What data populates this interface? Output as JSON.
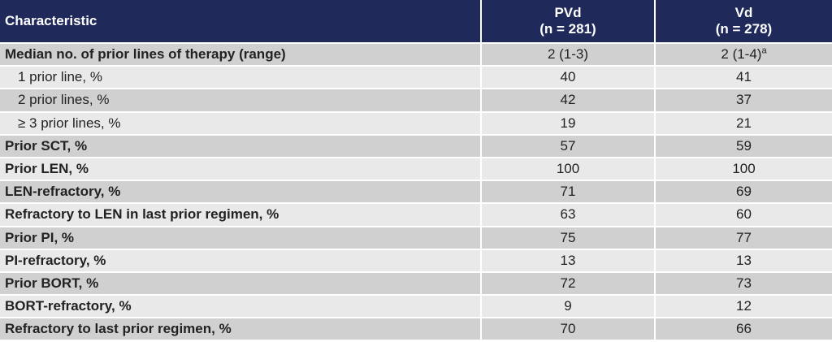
{
  "header": {
    "characteristic": "Characteristic",
    "col1_name": "PVd",
    "col1_n": "(n = 281)",
    "col2_name": "Vd",
    "col2_n": "(n = 278)"
  },
  "rows": [
    {
      "label": "Median no. of prior lines of therapy (range)",
      "pvd": "2 (1-3)",
      "vd": "2 (1-4)",
      "vd_sup": "a"
    },
    {
      "label": "1 prior line, %",
      "pvd": "40",
      "vd": "41"
    },
    {
      "label": "2 prior lines, %",
      "pvd": "42",
      "vd": "37"
    },
    {
      "label": "≥ 3 prior lines, %",
      "pvd": "19",
      "vd": "21"
    },
    {
      "label": "Prior SCT, %",
      "pvd": "57",
      "vd": "59"
    },
    {
      "label": "Prior LEN, %",
      "pvd": "100",
      "vd": "100"
    },
    {
      "label": "LEN-refractory, %",
      "pvd": "71",
      "vd": "69"
    },
    {
      "label": "Refractory to LEN in last prior regimen, %",
      "pvd": "63",
      "vd": "60"
    },
    {
      "label": "Prior PI, %",
      "pvd": "75",
      "vd": "77"
    },
    {
      "label": "PI-refractory, %",
      "pvd": "13",
      "vd": "13"
    },
    {
      "label": "Prior BORT, %",
      "pvd": "72",
      "vd": "73"
    },
    {
      "label": "BORT-refractory, %",
      "pvd": "9",
      "vd": "12"
    },
    {
      "label": "Refractory to last prior regimen, %",
      "pvd": "70",
      "vd": "66"
    }
  ],
  "colors": {
    "header_bg": "#1f2a5a",
    "row_dark": "#d0d0d0",
    "row_light": "#e9e9e9"
  }
}
